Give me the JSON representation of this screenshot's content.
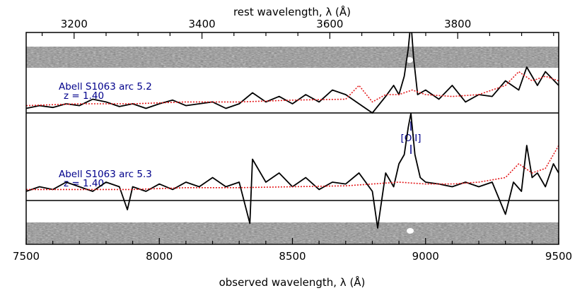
{
  "chart_data": {
    "type": "line",
    "title": "",
    "xlabel": "observed wavelength, λ (Å)",
    "x2label": "rest wavelength, λ (Å)",
    "xlim": [
      7500,
      9500
    ],
    "x2lim": [
      3125,
      3958
    ],
    "xticks": [
      "7500",
      "8000",
      "8500",
      "9000",
      "9500"
    ],
    "x2ticks": [
      "3200",
      "3400",
      "3600",
      "3800"
    ],
    "redshift": 1.4,
    "line_id": {
      "label": "[OII]",
      "rest_wavelength": 3727,
      "observed_wavelength": 8945
    },
    "panels": [
      {
        "label": "Abell S1063 arc 5.2",
        "z_label": "z = 1.40",
        "series": [
          {
            "name": "",
            "color": "#000000",
            "style": "solid",
            "x": [
              7500,
              7550,
              7600,
              7650,
              7700,
              7750,
              7800,
              7850,
              7900,
              7950,
              8000,
              8050,
              8100,
              8150,
              8200,
              8250,
              8300,
              8350,
              8400,
              8450,
              8500,
              8550,
              8600,
              8650,
              8700,
              8750,
              8800,
              8850,
              8880,
              8900,
              8920,
              8935,
              8945,
              8955,
              8970,
              9000,
              9050,
              9100,
              9150,
              9200,
              9250,
              9300,
              9350,
              9380,
              9420,
              9450,
              9500
            ],
            "y": [
              0.05,
              0.08,
              0.06,
              0.1,
              0.08,
              0.15,
              0.12,
              0.07,
              0.1,
              0.05,
              0.1,
              0.14,
              0.08,
              0.1,
              0.12,
              0.05,
              0.1,
              0.22,
              0.12,
              0.18,
              0.1,
              0.2,
              0.12,
              0.25,
              0.2,
              0.1,
              0.0,
              0.18,
              0.3,
              0.2,
              0.4,
              0.7,
              1.0,
              0.6,
              0.2,
              0.25,
              0.15,
              0.3,
              0.12,
              0.2,
              0.18,
              0.35,
              0.25,
              0.5,
              0.3,
              0.45,
              0.3
            ]
          },
          {
            "name": "",
            "color": "#e41a1c",
            "style": "dotted",
            "x": [
              7500,
              7700,
              7900,
              8100,
              8300,
              8500,
              8700,
              8750,
              8800,
              8850,
              8900,
              8950,
              9000,
              9100,
              9200,
              9300,
              9350,
              9400,
              9450,
              9500
            ],
            "y": [
              0.08,
              0.1,
              0.1,
              0.12,
              0.12,
              0.14,
              0.15,
              0.3,
              0.12,
              0.2,
              0.2,
              0.25,
              0.2,
              0.18,
              0.2,
              0.3,
              0.45,
              0.35,
              0.4,
              0.35
            ]
          }
        ]
      },
      {
        "label": "Abell S1063 arc 5.3",
        "z_label": "z = 1.40",
        "series": [
          {
            "name": "",
            "color": "#000000",
            "style": "solid",
            "x": [
              7500,
              7550,
              7600,
              7650,
              7700,
              7750,
              7800,
              7850,
              7880,
              7900,
              7950,
              8000,
              8050,
              8100,
              8150,
              8200,
              8250,
              8300,
              8340,
              8350,
              8400,
              8450,
              8500,
              8550,
              8600,
              8650,
              8700,
              8750,
              8800,
              8820,
              8850,
              8880,
              8900,
              8920,
              8935,
              8945,
              8960,
              8980,
              9000,
              9050,
              9100,
              9150,
              9200,
              9250,
              9300,
              9330,
              9360,
              9380,
              9400,
              9420,
              9450,
              9480,
              9500
            ],
            "y": [
              0.1,
              0.15,
              0.12,
              0.2,
              0.15,
              0.1,
              0.2,
              0.15,
              -0.1,
              0.15,
              0.1,
              0.18,
              0.12,
              0.2,
              0.15,
              0.25,
              0.15,
              0.2,
              -0.25,
              0.45,
              0.2,
              0.3,
              0.15,
              0.25,
              0.12,
              0.2,
              0.18,
              0.3,
              0.1,
              -0.3,
              0.3,
              0.15,
              0.4,
              0.5,
              0.8,
              0.95,
              0.5,
              0.25,
              0.2,
              0.18,
              0.15,
              0.2,
              0.15,
              0.2,
              -0.15,
              0.2,
              0.1,
              0.6,
              0.25,
              0.3,
              0.15,
              0.4,
              0.3
            ]
          },
          {
            "name": "",
            "color": "#e41a1c",
            "style": "dotted",
            "x": [
              7500,
              7700,
              7900,
              8100,
              8300,
              8500,
              8700,
              8800,
              8900,
              9000,
              9100,
              9200,
              9300,
              9350,
              9400,
              9450,
              9500
            ],
            "y": [
              0.12,
              0.12,
              0.12,
              0.14,
              0.14,
              0.15,
              0.16,
              0.18,
              0.2,
              0.18,
              0.18,
              0.2,
              0.25,
              0.4,
              0.3,
              0.35,
              0.6
            ]
          }
        ]
      }
    ]
  }
}
